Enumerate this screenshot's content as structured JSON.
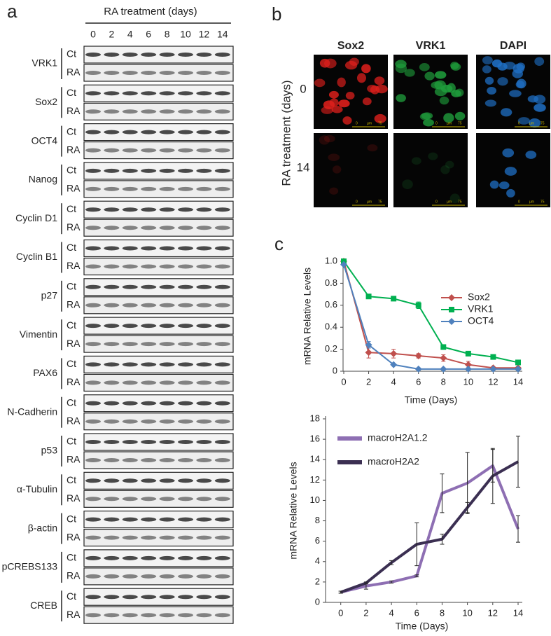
{
  "panel_a": {
    "label": "a",
    "header": "RA treatment (days)",
    "days": [
      0,
      2,
      4,
      6,
      8,
      10,
      12,
      14
    ],
    "conditions": [
      "Ct",
      "RA"
    ],
    "proteins": [
      "VRK1",
      "Sox2",
      "OCT4",
      "Nanog",
      "Cyclin D1",
      "Cyclin B1",
      "p27",
      "Vimentin",
      "PAX6",
      "N-Cadherin",
      "p53",
      "α-Tubulin",
      "β-actin",
      "pCREBS133",
      "CREB"
    ]
  },
  "panel_b": {
    "label": "b",
    "channels": [
      {
        "name": "Sox2",
        "color": "#e0201c"
      },
      {
        "name": "VRK1",
        "color": "#1f9e3c"
      },
      {
        "name": "DAPI",
        "color": "#1f6fc4"
      }
    ],
    "rows": [
      0,
      14
    ],
    "row_axis_label": "RA treatment (days)",
    "scale_bar": [
      "0",
      "µm",
      "75"
    ]
  },
  "panel_c": {
    "label": "c"
  },
  "chart_data": [
    {
      "type": "line",
      "x": [
        0,
        2,
        4,
        6,
        8,
        10,
        12,
        14
      ],
      "xlim": [
        0,
        14
      ],
      "xticks": [
        0,
        2,
        4,
        6,
        8,
        10,
        12,
        14
      ],
      "ylim": [
        0,
        1
      ],
      "yticks": [
        0,
        0.2,
        0.4,
        0.6,
        0.8,
        {
          "value": 1,
          "label": "1.0"
        }
      ],
      "ylabel": "mRNA Relative Levels",
      "xlabel": "Time (Days)",
      "legend": "upper-right",
      "series": [
        {
          "name": "Sox2",
          "color": "#c0504d",
          "marker": "diamond",
          "values": [
            1.0,
            0.17,
            0.16,
            0.14,
            0.12,
            0.06,
            0.03,
            0.03
          ],
          "errors": [
            0,
            0.05,
            0.04,
            0.02,
            0.03,
            0.03,
            0.01,
            0.01
          ]
        },
        {
          "name": "VRK1",
          "color": "#00b050",
          "marker": "square",
          "values": [
            1.0,
            0.68,
            0.66,
            0.6,
            0.22,
            0.16,
            0.13,
            0.08
          ],
          "errors": [
            0,
            0.01,
            0.01,
            0.03,
            0.01,
            0.01,
            0.01,
            0.01
          ]
        },
        {
          "name": "OCT4",
          "color": "#4f81bd",
          "marker": "diamond",
          "values": [
            0.97,
            0.24,
            0.06,
            0.02,
            0.02,
            0.02,
            0.02,
            0.02
          ],
          "errors": [
            0,
            0.03,
            0.01,
            0.01,
            0.01,
            0.01,
            0.01,
            0.01
          ]
        }
      ]
    },
    {
      "type": "line",
      "x": [
        0,
        2,
        4,
        6,
        8,
        10,
        12,
        14
      ],
      "xlim": [
        -1.2,
        14
      ],
      "xticks": [
        0,
        2,
        4,
        6,
        8,
        10,
        12,
        14
      ],
      "ylim": [
        0,
        18
      ],
      "yticks": [
        0,
        2,
        4,
        6,
        8,
        10,
        12,
        14,
        16,
        18
      ],
      "ylabel": "mRNA Relative Levels",
      "xlabel": "Time (Days)",
      "legend": "upper-left",
      "series": [
        {
          "name": "macroH2A1.2",
          "color": "#8e6fb3",
          "marker": "none",
          "values": [
            1.0,
            1.6,
            2.0,
            2.6,
            10.7,
            11.7,
            13.4,
            7.2
          ],
          "errors": [
            0.1,
            0.3,
            0.1,
            0.1,
            1.9,
            3.0,
            1.6,
            1.3
          ]
        },
        {
          "name": "macroH2A2",
          "color": "#3b2f52",
          "marker": "none",
          "values": [
            1.0,
            1.9,
            3.9,
            5.7,
            6.2,
            9.3,
            12.4,
            13.8
          ],
          "errors": [
            0.1,
            0.1,
            0.2,
            2.1,
            0.5,
            0.5,
            2.7,
            2.5
          ]
        }
      ]
    }
  ]
}
